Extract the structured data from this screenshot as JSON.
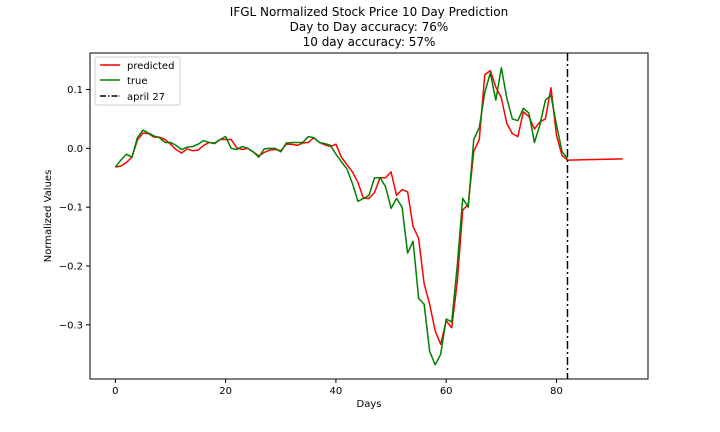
{
  "chart_data": {
    "type": "line",
    "title_lines": [
      "IFGL Normalized Stock Price 10 Day Prediction",
      "Day to Day accuracy: 76%",
      "10 day accuracy: 57%"
    ],
    "xlabel": "Days",
    "ylabel": "Normalized Values",
    "xlim": [
      -4.6,
      96.6
    ],
    "ylim": [
      -0.392,
      0.162
    ],
    "xticks": [
      0,
      20,
      40,
      60,
      80
    ],
    "yticks": [
      -0.3,
      -0.2,
      -0.1,
      0.0,
      0.1
    ],
    "ytick_labels": [
      "−0.3",
      "−0.2",
      "−0.1",
      "0.0",
      "0.1"
    ],
    "grid": false,
    "legend_position": "top-left",
    "series": [
      {
        "name": "predicted",
        "color": "#ff0000",
        "style": "solid",
        "x": [
          0,
          1,
          2,
          3,
          4,
          5,
          6,
          7,
          8,
          9,
          10,
          11,
          12,
          13,
          14,
          15,
          16,
          17,
          18,
          19,
          20,
          21,
          22,
          23,
          24,
          25,
          26,
          27,
          28,
          29,
          30,
          31,
          32,
          33,
          34,
          35,
          36,
          37,
          38,
          39,
          40,
          41,
          42,
          43,
          44,
          45,
          46,
          47,
          48,
          49,
          50,
          51,
          52,
          53,
          54,
          55,
          56,
          57,
          58,
          59,
          60,
          61,
          62,
          63,
          64,
          65,
          66,
          67,
          68,
          69,
          70,
          71,
          72,
          73,
          74,
          75,
          76,
          77,
          78,
          79,
          80,
          81,
          82,
          92
        ],
        "y": [
          -0.032,
          -0.03,
          -0.024,
          -0.015,
          0.014,
          0.026,
          0.025,
          0.019,
          0.019,
          0.015,
          0.007,
          -0.002,
          -0.008,
          -0.001,
          -0.004,
          -0.003,
          0.005,
          0.01,
          0.009,
          0.015,
          0.015,
          0.015,
          0.001,
          -0.002,
          0.0,
          -0.006,
          -0.013,
          -0.007,
          -0.003,
          -0.002,
          -0.004,
          0.007,
          0.007,
          0.005,
          0.009,
          0.01,
          0.018,
          0.01,
          0.006,
          0.003,
          0.007,
          -0.015,
          -0.028,
          -0.04,
          -0.058,
          -0.085,
          -0.085,
          -0.075,
          -0.05,
          -0.05,
          -0.04,
          -0.08,
          -0.07,
          -0.074,
          -0.133,
          -0.153,
          -0.23,
          -0.265,
          -0.31,
          -0.333,
          -0.293,
          -0.305,
          -0.228,
          -0.105,
          -0.095,
          -0.005,
          0.015,
          0.125,
          0.132,
          0.104,
          0.086,
          0.042,
          0.025,
          0.02,
          0.062,
          0.054,
          0.033,
          0.045,
          0.05,
          0.103,
          0.022,
          -0.012,
          -0.02,
          -0.018
        ]
      },
      {
        "name": "true",
        "color": "#008000",
        "style": "solid",
        "x": [
          0,
          1,
          2,
          3,
          4,
          5,
          6,
          7,
          8,
          9,
          10,
          11,
          12,
          13,
          14,
          15,
          16,
          17,
          18,
          19,
          20,
          21,
          22,
          23,
          24,
          25,
          26,
          27,
          28,
          29,
          30,
          31,
          32,
          33,
          34,
          35,
          36,
          37,
          38,
          39,
          40,
          41,
          42,
          43,
          44,
          45,
          46,
          47,
          48,
          49,
          50,
          51,
          52,
          53,
          54,
          55,
          56,
          57,
          58,
          59,
          60,
          61,
          62,
          63,
          64,
          65,
          66,
          67,
          68,
          69,
          70,
          71,
          72,
          73,
          74,
          75,
          76,
          77,
          78,
          79,
          80,
          81,
          82
        ],
        "y": [
          -0.032,
          -0.02,
          -0.01,
          -0.015,
          0.018,
          0.031,
          0.026,
          0.021,
          0.018,
          0.01,
          0.01,
          0.005,
          -0.002,
          0.002,
          0.003,
          0.007,
          0.013,
          0.01,
          0.008,
          0.015,
          0.02,
          0.0,
          -0.002,
          0.003,
          0.0,
          -0.006,
          -0.015,
          -0.001,
          0.0,
          0.0,
          -0.006,
          0.009,
          0.01,
          0.01,
          0.01,
          0.02,
          0.018,
          0.01,
          0.008,
          0.005,
          -0.01,
          -0.023,
          -0.035,
          -0.06,
          -0.09,
          -0.085,
          -0.08,
          -0.05,
          -0.05,
          -0.065,
          -0.102,
          -0.085,
          -0.1,
          -0.178,
          -0.158,
          -0.255,
          -0.265,
          -0.345,
          -0.368,
          -0.35,
          -0.29,
          -0.295,
          -0.2,
          -0.085,
          -0.1,
          0.015,
          0.035,
          0.095,
          0.128,
          0.082,
          0.137,
          0.085,
          0.05,
          0.047,
          0.068,
          0.06,
          0.01,
          0.04,
          0.082,
          0.09,
          0.04,
          -0.005,
          -0.018
        ]
      },
      {
        "name": "april 27",
        "color": "#000000",
        "style": "dashdot",
        "vline_x": 82
      }
    ]
  }
}
